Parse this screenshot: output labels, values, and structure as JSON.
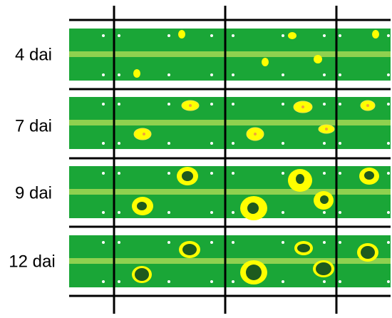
{
  "rows": [
    {
      "label": "4 dai"
    },
    {
      "label": "7 dai"
    },
    {
      "label": "9 dai"
    },
    {
      "label": "12 dai"
    }
  ]
}
